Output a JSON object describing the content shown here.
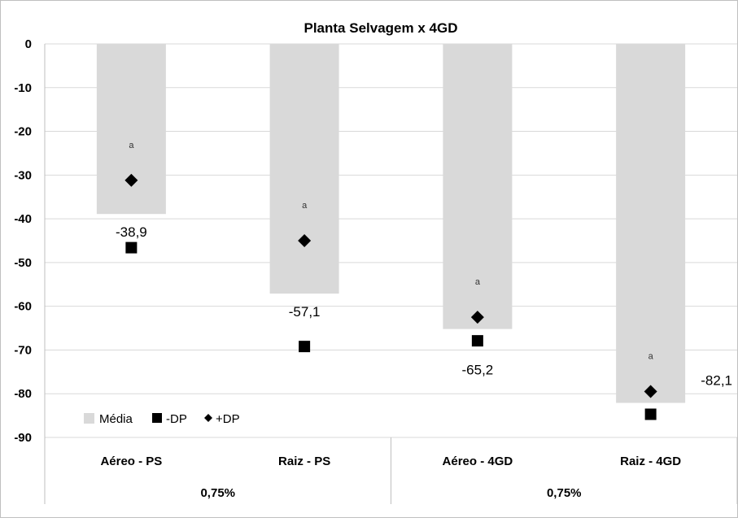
{
  "chart_data": {
    "type": "bar",
    "title": "Planta Selvagem x 4GD",
    "categories": [
      "Aéreo - PS",
      "Raiz - PS",
      "Aéreo - 4GD",
      "Raiz - 4GD"
    ],
    "groups": [
      {
        "label": "0,75%",
        "categories": [
          "Aéreo - PS",
          "Raiz - PS"
        ]
      },
      {
        "label": "0,75%",
        "categories": [
          "Aéreo - 4GD",
          "Raiz - 4GD"
        ]
      }
    ],
    "series": [
      {
        "name": "Média",
        "values": [
          -38.9,
          -57.1,
          -65.2,
          -82.1
        ],
        "color": "#d9d9d9",
        "marker": "bar"
      },
      {
        "name": "-DP",
        "values": [
          -46.6,
          -69.2,
          -67.9,
          -84.7
        ],
        "color": "#000000",
        "marker": "square"
      },
      {
        "name": "+DP",
        "values": [
          -31.2,
          -45.0,
          -62.5,
          -79.5
        ],
        "color": "#000000",
        "marker": "diamond"
      }
    ],
    "data_labels": [
      "-38,9",
      "-57,1",
      "-65,2",
      "-82,1"
    ],
    "significance_letters": [
      "a",
      "a",
      "a",
      "a"
    ],
    "ylim": [
      -90,
      0
    ],
    "yticks": [
      "0",
      "-10",
      "-20",
      "-30",
      "-40",
      "-50",
      "-60",
      "-70",
      "-80",
      "-90"
    ],
    "ytick_values": [
      0,
      -10,
      -20,
      -30,
      -40,
      -50,
      -60,
      -70,
      -80,
      -90
    ],
    "grid": true,
    "legend_position": "bottom-left",
    "xlabel": "",
    "ylabel": ""
  }
}
